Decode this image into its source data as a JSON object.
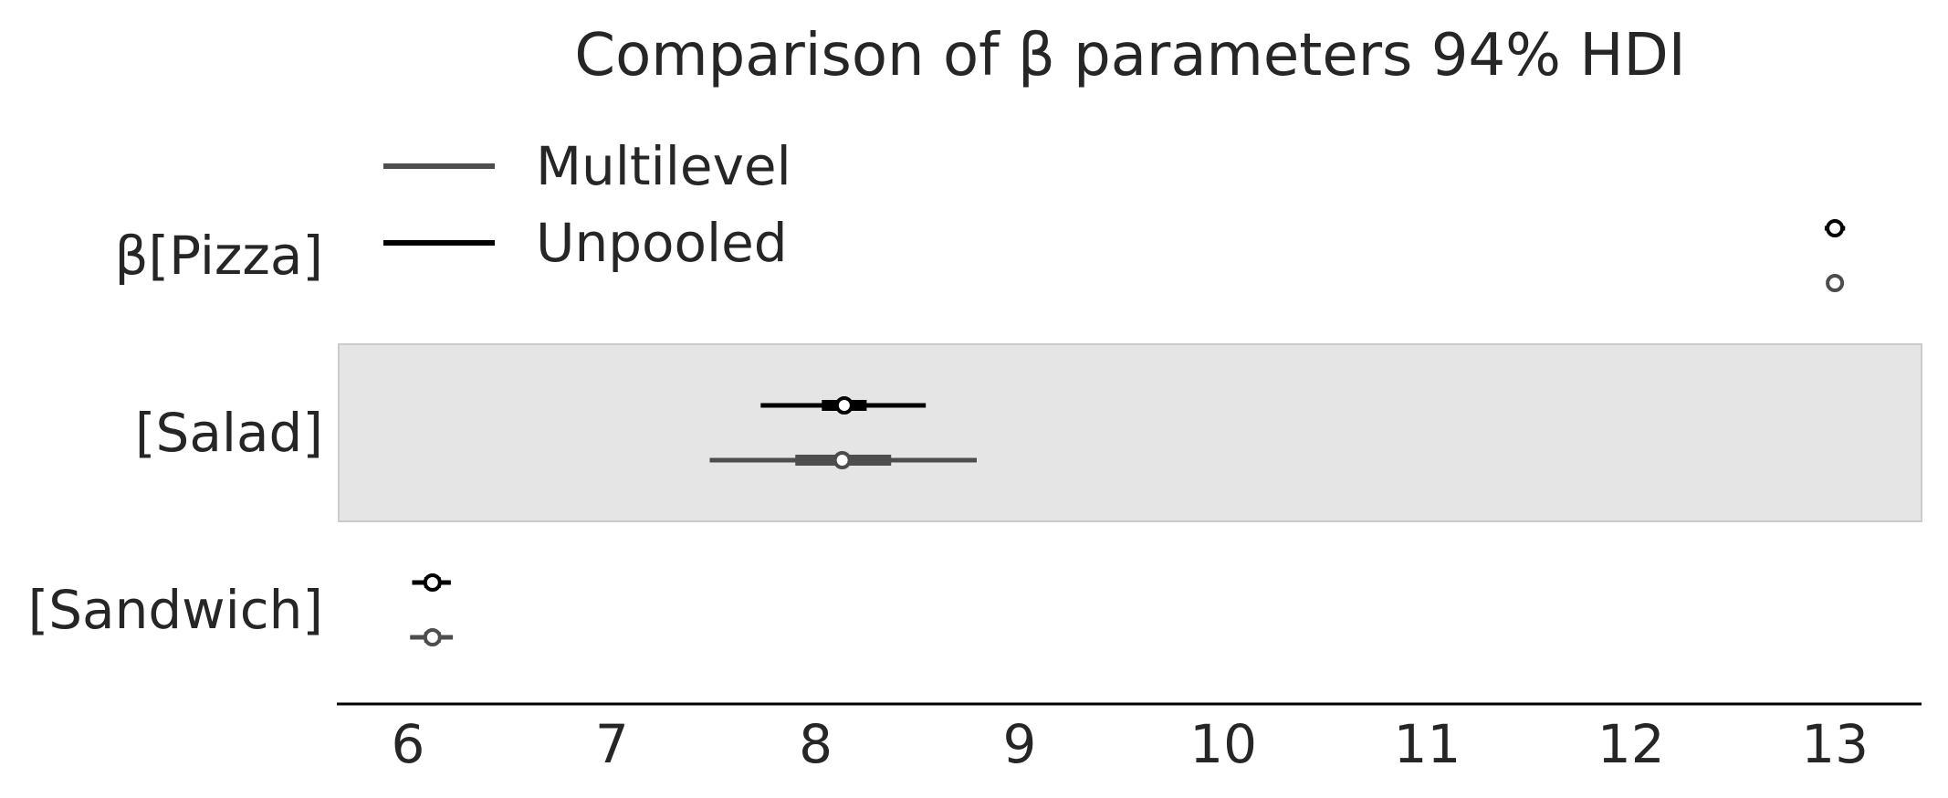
{
  "chart_data": {
    "type": "forest",
    "title": "Comparison of β parameters 94% HDI",
    "xlabel": "",
    "ylabel": "",
    "xlim": [
      5.65,
      13.45
    ],
    "x_ticks": [
      6,
      7,
      8,
      9,
      10,
      11,
      12,
      13
    ],
    "categories": [
      "β[Pizza]",
      "[Salad]",
      "[Sandwich]"
    ],
    "highlighted_category": "[Salad]",
    "grid": false,
    "legend_position": "top-left",
    "series": [
      {
        "name": "Unpooled",
        "color": "#000000",
        "points": [
          {
            "category": "β[Pizza]",
            "mean": 13.0,
            "hdi_94": [
              12.95,
              13.05
            ],
            "iqr": [
              12.98,
              13.02
            ]
          },
          {
            "category": "[Salad]",
            "mean": 8.14,
            "hdi_94": [
              7.73,
              8.54
            ],
            "iqr": [
              8.03,
              8.25
            ]
          },
          {
            "category": "[Sandwich]",
            "mean": 6.12,
            "hdi_94": [
              6.02,
              6.21
            ],
            "iqr": [
              6.08,
              6.16
            ]
          }
        ]
      },
      {
        "name": "Multilevel",
        "color": "#4d4d4d",
        "points": [
          {
            "category": "β[Pizza]",
            "mean": 13.0,
            "hdi_94": [
              12.96,
              13.04
            ],
            "iqr": [
              12.99,
              13.01
            ]
          },
          {
            "category": "[Salad]",
            "mean": 8.13,
            "hdi_94": [
              7.48,
              8.79
            ],
            "iqr": [
              7.9,
              8.37
            ]
          },
          {
            "category": "[Sandwich]",
            "mean": 6.12,
            "hdi_94": [
              6.01,
              6.22
            ],
            "iqr": [
              6.08,
              6.16
            ]
          }
        ]
      }
    ],
    "legend": [
      "Multilevel",
      "Unpooled"
    ]
  }
}
